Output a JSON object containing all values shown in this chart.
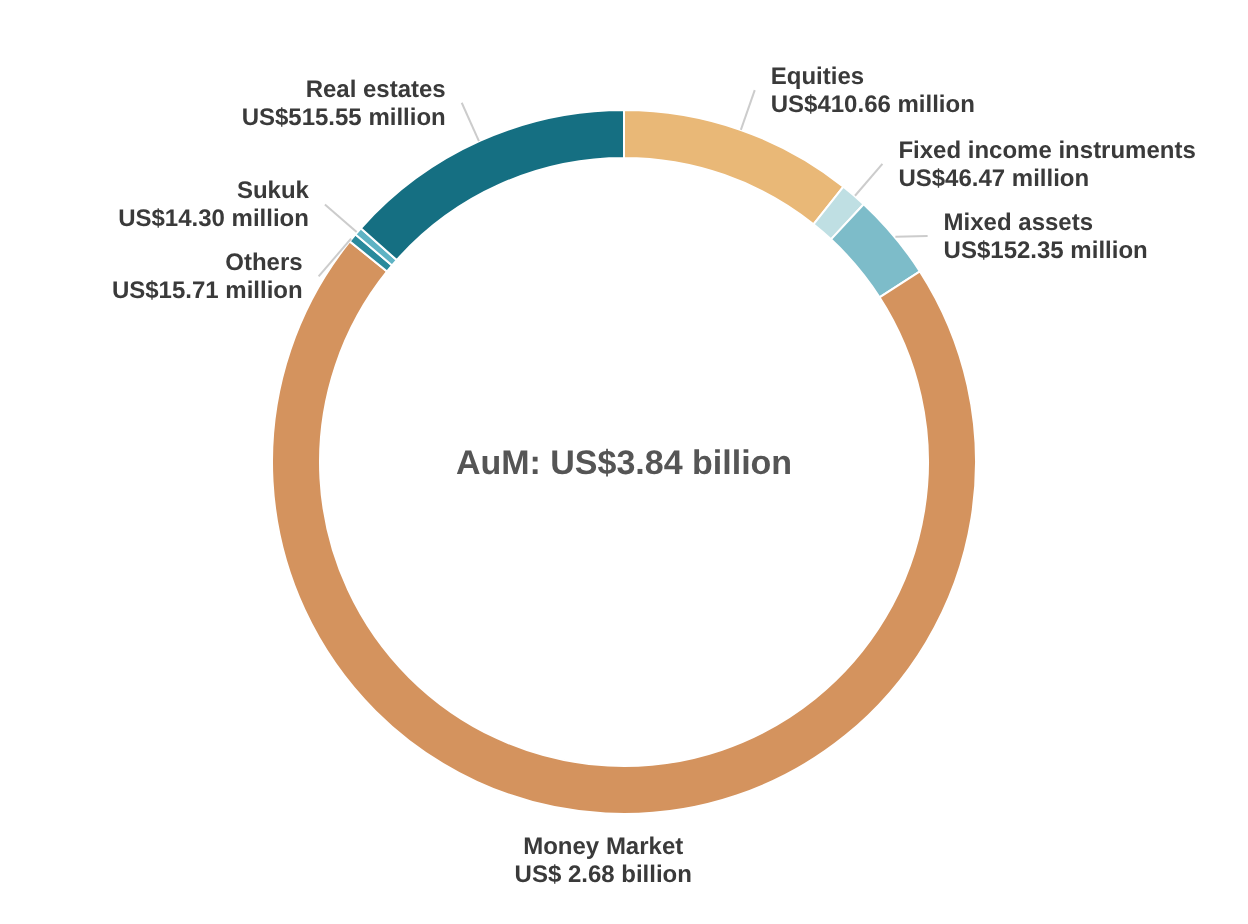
{
  "chart_data": {
    "type": "donut",
    "categories": [
      "Equities",
      "Fixed income instruments",
      "Mixed assets",
      "Money Market",
      "Others",
      "Sukuk",
      "Real estates"
    ],
    "values": [
      10.71,
      1.21,
      3.97,
      69.89,
      0.41,
      0.37,
      13.44
    ],
    "value_labels": [
      "US$410.66 million",
      "US$46.47 million",
      "US$152.35 million",
      "US$ 2.68 billion",
      "US$15.71 million",
      "US$14.30 million",
      "US$515.55 million"
    ],
    "colors": [
      "#e9b877",
      "#bfdfe3",
      "#7dbcc9",
      "#d4935e",
      "#2a8a9c",
      "#5fb3c4",
      "#156f82"
    ],
    "annotations": [
      "AuM: US$3.84 billion"
    ]
  }
}
